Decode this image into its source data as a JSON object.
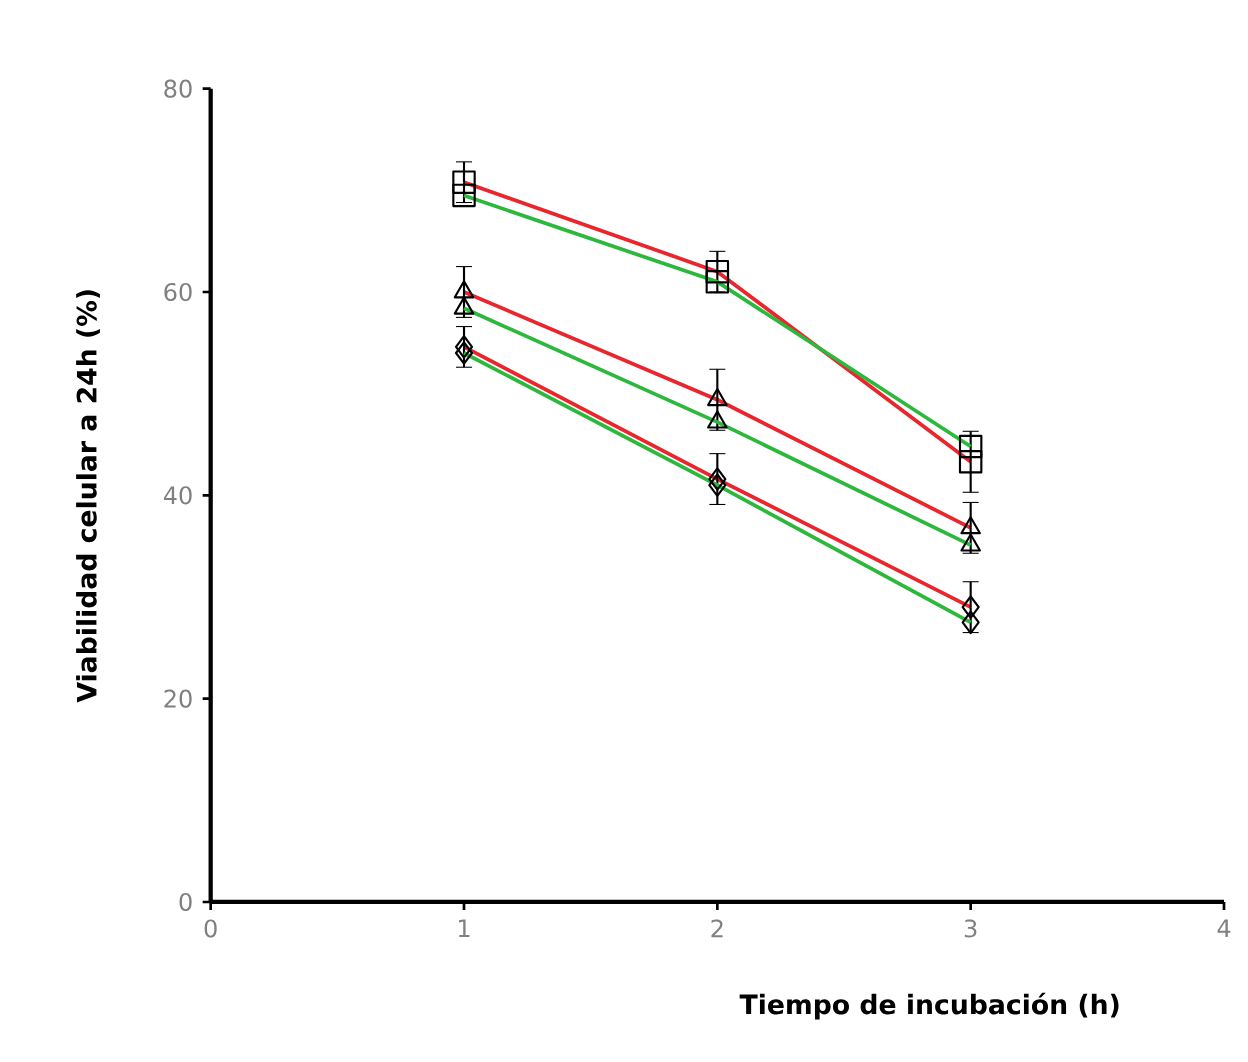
{
  "chart_data": {
    "type": "line",
    "xlabel": "Tiempo de incubación (h)",
    "ylabel": "Viabilidad celular a 24h (%)",
    "x": [
      1,
      2,
      3
    ],
    "xlim": [
      0,
      4
    ],
    "xticks": [
      0,
      1,
      2,
      3,
      4
    ],
    "ylim": [
      0,
      80
    ],
    "yticks": [
      0,
      20,
      40,
      60,
      80
    ],
    "line_style": "solid",
    "series": [
      {
        "color": "#e8262d",
        "marker": "square",
        "values": [
          70.8,
          62,
          43.3
        ],
        "errors": [
          2,
          2,
          3
        ]
      },
      {
        "color": "#2db83d",
        "marker": "square",
        "values": [
          69.5,
          61,
          44.8
        ]
      },
      {
        "color": "#e8262d",
        "marker": "triangle",
        "values": [
          60,
          49.4,
          36.8
        ],
        "errors": [
          2.5,
          3,
          2.5
        ]
      },
      {
        "color": "#2db83d",
        "marker": "triangle",
        "values": [
          58.4,
          47.2,
          35.1
        ]
      },
      {
        "color": "#e8262d",
        "marker": "diamond",
        "values": [
          54.6,
          41.6,
          29
        ],
        "errors": [
          2,
          2.5,
          2.5
        ]
      },
      {
        "color": "#2db83d",
        "marker": "diamond",
        "values": [
          54,
          41,
          27.5
        ]
      }
    ]
  }
}
